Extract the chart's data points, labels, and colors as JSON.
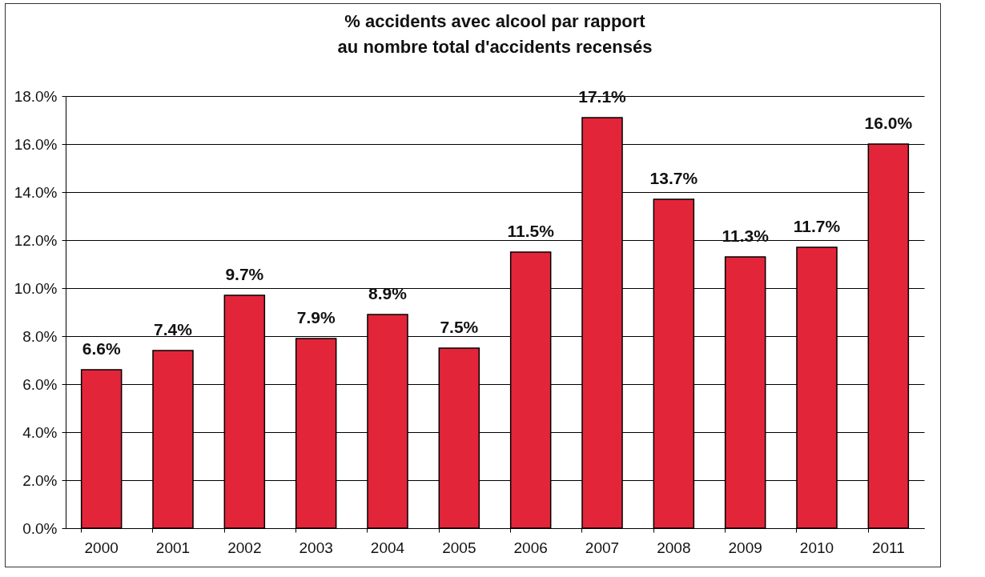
{
  "chart_data": {
    "type": "bar",
    "title": "% accidents avec alcool par rapport\nau nombre total d'accidents recensés",
    "categories": [
      "2000",
      "2001",
      "2002",
      "2003",
      "2004",
      "2005",
      "2006",
      "2007",
      "2008",
      "2009",
      "2010",
      "2011"
    ],
    "values": [
      6.6,
      7.4,
      9.7,
      7.9,
      8.9,
      7.5,
      11.5,
      17.1,
      13.7,
      11.3,
      11.7,
      16.0
    ],
    "value_labels": [
      "6.6%",
      "7.4%",
      "9.7%",
      "7.9%",
      "8.9%",
      "7.5%",
      "11.5%",
      "17.1%",
      "13.7%",
      "11.3%",
      "11.7%",
      "16.0%"
    ],
    "color": "#e3253a",
    "ylim": [
      0,
      18
    ],
    "yticks": [
      {
        "value": 0,
        "label": "0.0%"
      },
      {
        "value": 2,
        "label": "2.0%"
      },
      {
        "value": 4,
        "label": "4.0%"
      },
      {
        "value": 6,
        "label": "6.0%"
      },
      {
        "value": 8,
        "label": "8.0%"
      },
      {
        "value": 10,
        "label": "10.0%"
      },
      {
        "value": 12,
        "label": "12.0%"
      },
      {
        "value": 14,
        "label": "14.0%"
      },
      {
        "value": 16,
        "label": "16.0%"
      },
      {
        "value": 18,
        "label": "18.0%"
      }
    ],
    "grid": "y"
  }
}
